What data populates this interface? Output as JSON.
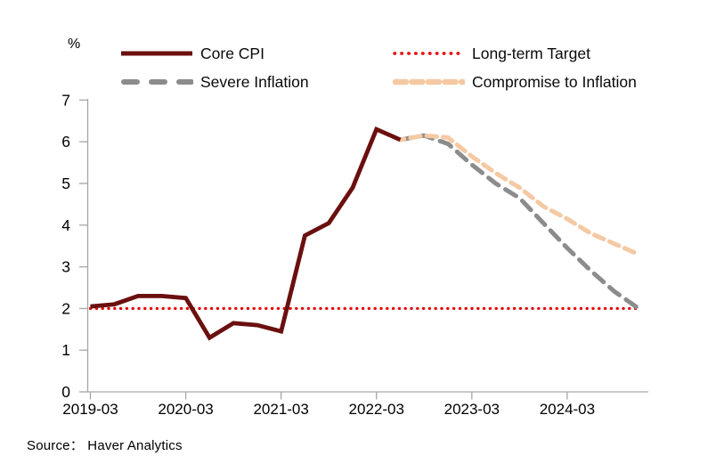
{
  "chart_data": {
    "type": "line",
    "title": "",
    "xlabel": "",
    "ylabel": "%",
    "unit_label": "%",
    "source": "Source：  Haver Analytics",
    "legend_position": "top",
    "grid": false,
    "axis_color": "#a6a6a6",
    "text_color": "#000000",
    "ylim": [
      0,
      7
    ],
    "y_tick_labels": [
      "0",
      "1",
      "2",
      "3",
      "4",
      "5",
      "6",
      "7"
    ],
    "x_tick_labels": [
      "2019-03",
      "2020-03",
      "2021-03",
      "2022-03",
      "2023-03",
      "2024-03"
    ],
    "categories": [
      "2019-03",
      "2019-06",
      "2019-09",
      "2019-12",
      "2020-03",
      "2020-06",
      "2020-09",
      "2020-12",
      "2021-03",
      "2021-06",
      "2021-09",
      "2021-12",
      "2022-03",
      "2022-06",
      "2022-09",
      "2022-12",
      "2023-03",
      "2023-06",
      "2023-09",
      "2023-12",
      "2024-03",
      "2024-06",
      "2024-09",
      "2024-12"
    ],
    "series": [
      {
        "name": "Core CPI",
        "color": "#6b0f0f",
        "style": "solid",
        "values": [
          2.05,
          2.1,
          2.3,
          2.3,
          2.25,
          1.3,
          1.65,
          1.6,
          1.45,
          3.75,
          4.05,
          4.9,
          6.3,
          6.05,
          null,
          null,
          null,
          null,
          null,
          null,
          null,
          null,
          null,
          null
        ]
      },
      {
        "name": "Long-term Target",
        "color": "#e60000",
        "style": "dotted",
        "values": [
          2,
          2,
          2,
          2,
          2,
          2,
          2,
          2,
          2,
          2,
          2,
          2,
          2,
          2,
          2,
          2,
          2,
          2,
          2,
          2,
          2,
          2,
          2,
          2
        ]
      },
      {
        "name": "Severe Inflation",
        "color": "#8c8c8c",
        "style": "dashed",
        "values": [
          null,
          null,
          null,
          null,
          null,
          null,
          null,
          null,
          null,
          null,
          null,
          null,
          null,
          6.05,
          6.15,
          5.95,
          5.45,
          5.0,
          4.65,
          4.05,
          3.45,
          2.9,
          2.4,
          2.0
        ]
      },
      {
        "name": "Compromise to Inflation",
        "color": "#f5c9a3",
        "style": "dashed",
        "values": [
          null,
          null,
          null,
          null,
          null,
          null,
          null,
          null,
          null,
          null,
          null,
          null,
          null,
          6.05,
          6.15,
          6.1,
          5.65,
          5.25,
          4.9,
          4.45,
          4.15,
          3.8,
          3.55,
          3.3
        ]
      }
    ]
  }
}
